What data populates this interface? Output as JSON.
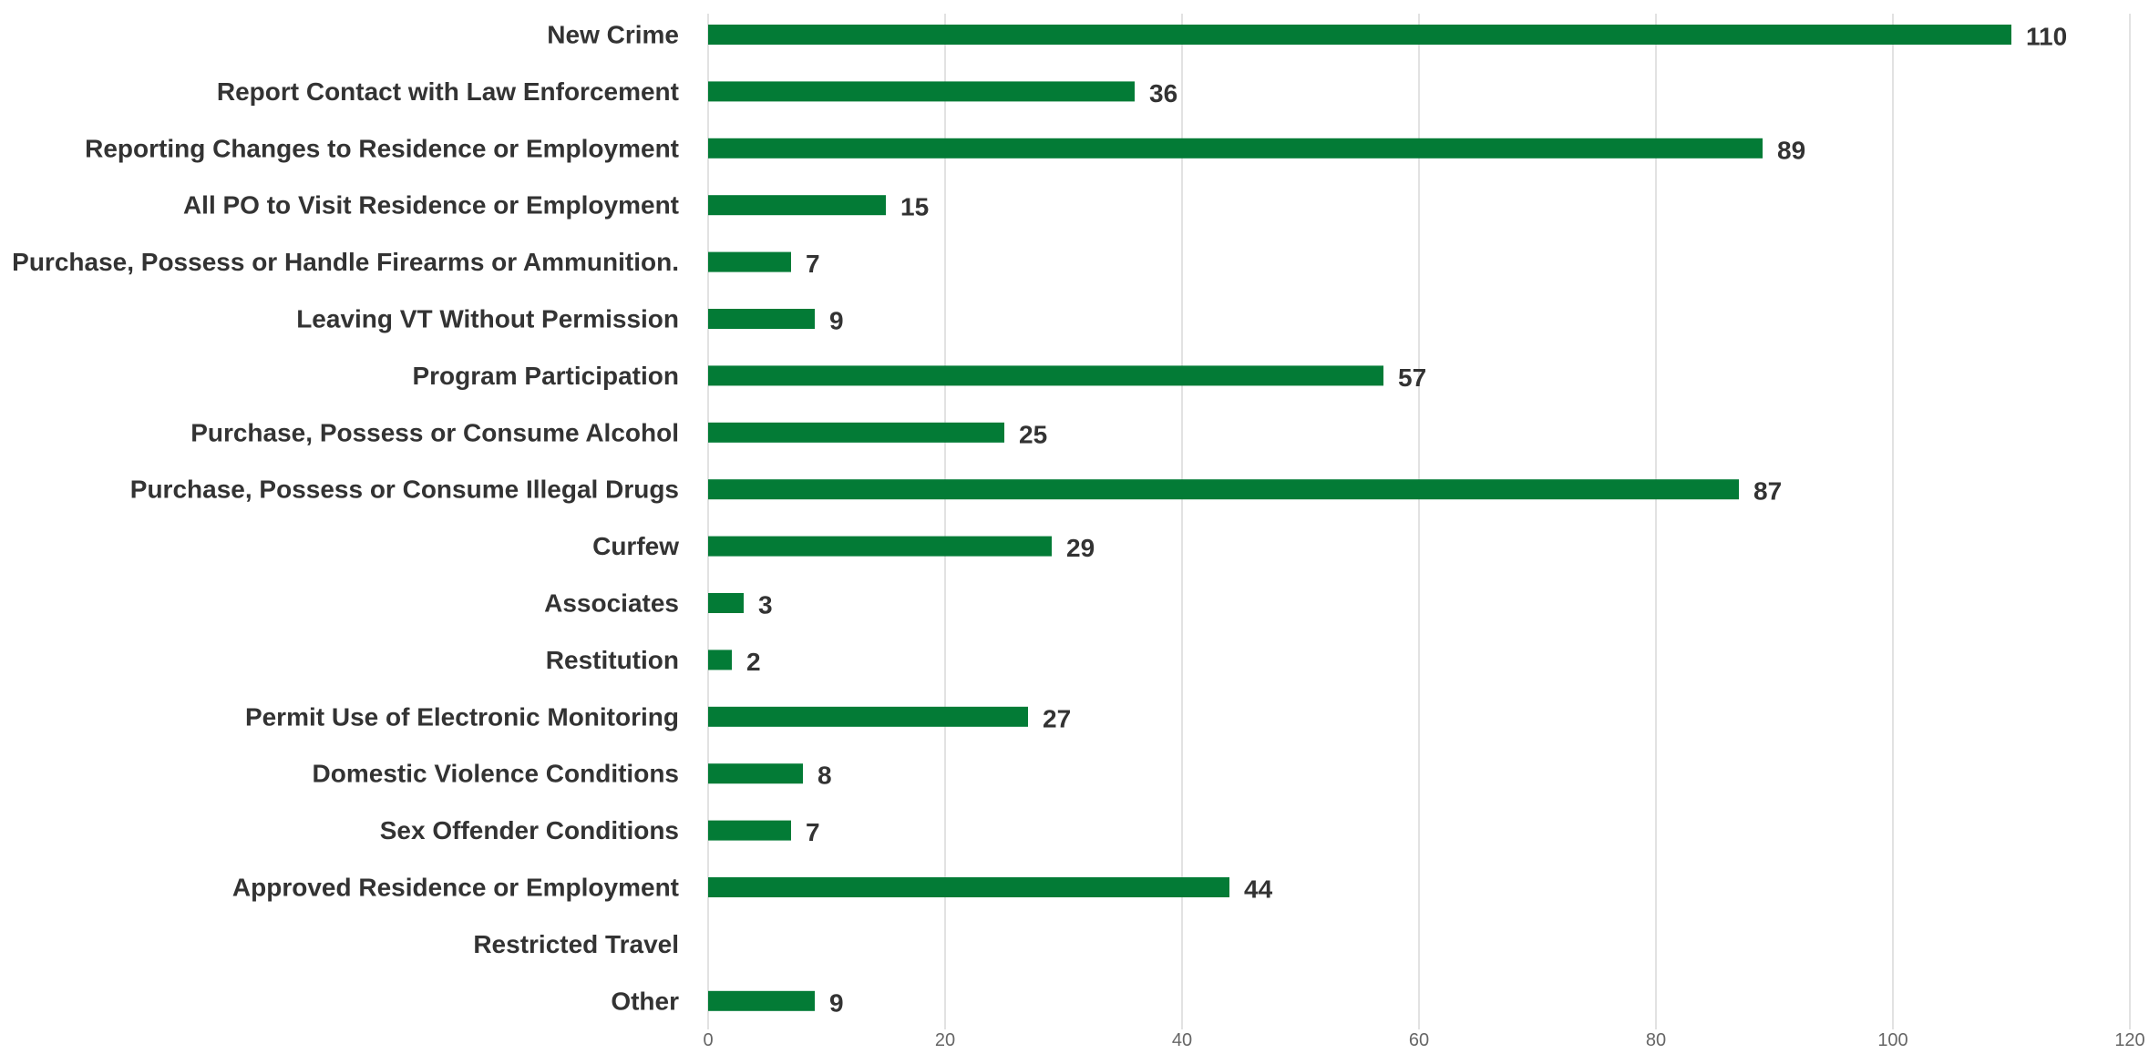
{
  "chart_data": {
    "type": "bar",
    "orientation": "horizontal",
    "title": "",
    "xlabel": "",
    "ylabel": "",
    "categories": [
      "New Crime",
      "Report Contact with Law Enforcement",
      "Reporting Changes to Residence or Employment",
      "All PO to Visit Residence or Employment",
      "Purchase, Possess or Handle Firearms or Ammunition.",
      "Leaving VT Without Permission",
      "Program Participation",
      "Purchase, Possess or Consume Alcohol",
      "Purchase, Possess or Consume Illegal Drugs",
      "Curfew",
      "Associates",
      "Restitution",
      "Permit Use of Electronic Monitoring",
      "Domestic Violence Conditions",
      "Sex Offender Conditions",
      "Approved Residence or Employment",
      "Restricted Travel",
      "Other"
    ],
    "values": [
      110,
      36,
      89,
      15,
      7,
      9,
      57,
      25,
      87,
      29,
      3,
      2,
      27,
      8,
      7,
      44,
      null,
      9
    ],
    "data_labels": [
      "110",
      "36",
      "89",
      "15",
      "7",
      "9",
      "57",
      "25",
      "87",
      "29",
      "3",
      "2",
      "27",
      "8",
      "7",
      "44",
      "",
      "9"
    ],
    "xlim": [
      0,
      120
    ],
    "x_ticks": [
      0,
      20,
      40,
      60,
      80,
      100,
      120
    ],
    "x_tick_labels": [
      "0",
      "20",
      "40",
      "60",
      "80",
      "100",
      "120"
    ],
    "grid": "vertical",
    "legend": "none",
    "bar_color": "#037B36",
    "label_color": "#333333",
    "tick_color": "#666666",
    "grid_color": "#D9D9D9"
  }
}
